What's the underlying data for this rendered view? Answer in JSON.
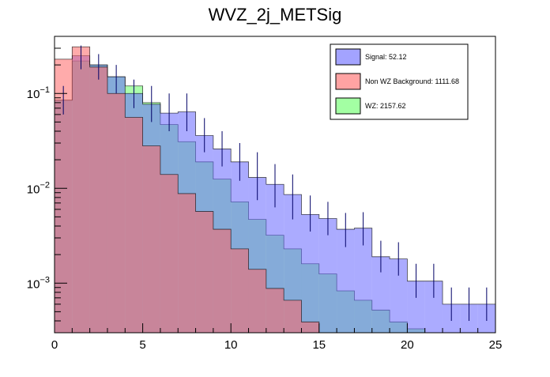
{
  "chart_data": {
    "type": "histogram",
    "title": "WVZ_2j_METSig",
    "xlabel": "",
    "ylabel": "",
    "xlim": [
      0,
      25
    ],
    "ylim": [
      0.0003,
      0.4
    ],
    "log_y": true,
    "grid": false,
    "legend_position": "top-right",
    "x_ticks": [
      0,
      5,
      10,
      15,
      20,
      25
    ],
    "y_ticks": [
      {
        "value": 0.1,
        "label": "10",
        "exp": "−1"
      },
      {
        "value": 0.01,
        "label": "10",
        "exp": "−2"
      },
      {
        "value": 0.001,
        "label": "10",
        "exp": "−3"
      }
    ],
    "bin_edges": [
      0,
      1,
      2,
      3,
      4,
      5,
      6,
      7,
      8,
      9,
      10,
      11,
      12,
      13,
      14,
      15,
      16,
      17,
      18,
      19,
      20,
      21,
      22,
      23,
      24,
      25
    ],
    "series": [
      {
        "name": "WZ: 2157.62",
        "fill": "#66ff66",
        "alpha": 0.55,
        "values": [
          0.085,
          0.22,
          0.2,
          0.15,
          0.12,
          0.08,
          0.047,
          0.031,
          0.019,
          0.0125,
          0.0072,
          0.0047,
          0.0032,
          0.0023,
          0.0016,
          0.00125,
          0.00083,
          0.00066,
          0.00052,
          0.00039,
          0.00033,
          0.00026,
          0.00026,
          0.00026,
          0.00026
        ]
      },
      {
        "name": "Signal: 52.12",
        "fill": "#6666ff",
        "alpha": 0.55,
        "errors": true,
        "values": [
          0.085,
          0.25,
          0.2,
          0.15,
          0.1,
          0.077,
          0.062,
          0.064,
          0.036,
          0.026,
          0.019,
          0.013,
          0.011,
          0.0086,
          0.0053,
          0.0048,
          0.0037,
          0.0038,
          0.0019,
          0.0018,
          0.00105,
          0.00105,
          0.0006,
          0.0006,
          0.0006
        ],
        "err_lo": [
          0.06,
          0.18,
          0.14,
          0.1,
          0.07,
          0.05,
          0.04,
          0.04,
          0.024,
          0.017,
          0.012,
          0.0075,
          0.0063,
          0.0047,
          0.0035,
          0.0032,
          0.0024,
          0.0025,
          0.0013,
          0.0012,
          0.0007,
          0.0007,
          0.0004,
          0.0004,
          0.0004
        ],
        "err_hi": [
          0.12,
          0.32,
          0.26,
          0.2,
          0.14,
          0.12,
          0.1,
          0.1,
          0.055,
          0.04,
          0.03,
          0.024,
          0.018,
          0.014,
          0.0084,
          0.0072,
          0.0055,
          0.0056,
          0.0028,
          0.0027,
          0.0016,
          0.0016,
          0.0009,
          0.0009,
          0.0009
        ]
      },
      {
        "name": "Non WZ Background: 1111.68",
        "fill": "#ff6666",
        "alpha": 0.55,
        "values": [
          0.23,
          0.31,
          0.19,
          0.1,
          0.056,
          0.028,
          0.014,
          0.0088,
          0.0057,
          0.0037,
          0.0023,
          0.0014,
          0.00088,
          0.00066,
          0.00039,
          0.00026,
          0.00026,
          0.00026,
          0.00026,
          0.00026,
          0.00026,
          0.00026,
          0.00026,
          0.00026,
          0.00026
        ]
      }
    ],
    "legend_order": [
      "Signal: 52.12",
      "Non WZ Background: 1111.68",
      "WZ: 2157.62"
    ]
  }
}
